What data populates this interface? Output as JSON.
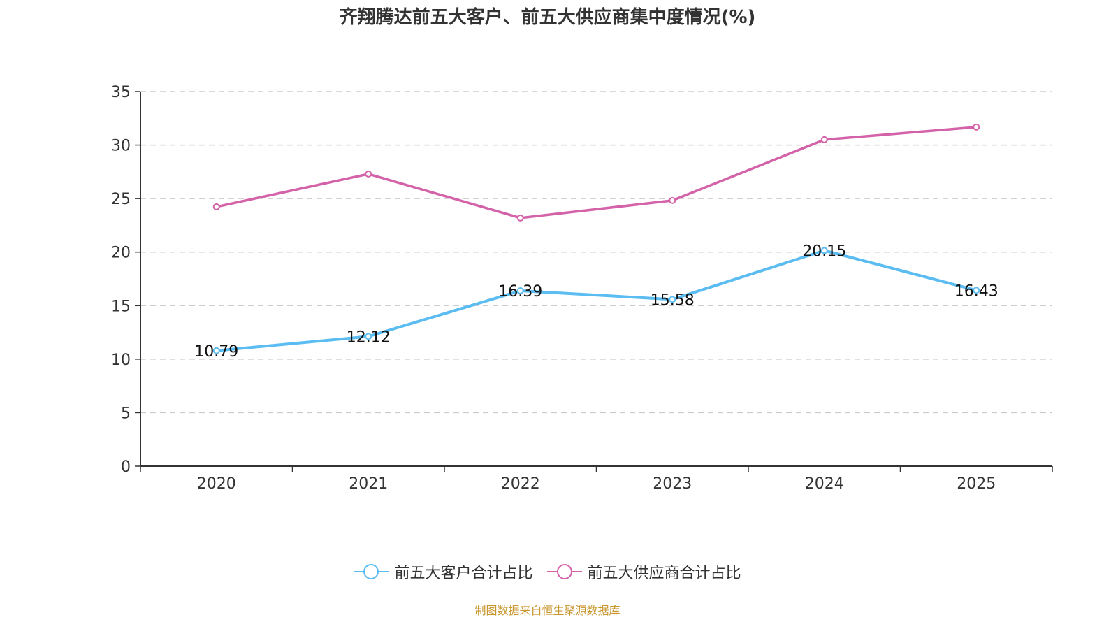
{
  "chart_data": {
    "type": "line",
    "title": "齐翔腾达前五大客户、前五大供应商集中度情况(%)",
    "xlabel": "",
    "ylabel": "",
    "categories": [
      "2020",
      "2021",
      "2022",
      "2023",
      "2024",
      "2025"
    ],
    "ylim": [
      0,
      35
    ],
    "yticks": [
      0,
      5,
      10,
      15,
      20,
      25,
      30,
      35
    ],
    "grid": true,
    "legend_position": "bottom",
    "series": [
      {
        "name": "前五大客户合计占比",
        "color": "#5bbcf2",
        "values": [
          10.79,
          12.12,
          16.39,
          15.58,
          20.15,
          16.43
        ],
        "show_labels": true
      },
      {
        "name": "前五大供应商合计占比",
        "color": "#d462a9",
        "values": [
          24.23,
          27.3,
          23.19,
          24.82,
          30.5,
          31.68
        ],
        "show_labels": false
      }
    ]
  },
  "source_note": "制图数据来自恒生聚源数据库"
}
